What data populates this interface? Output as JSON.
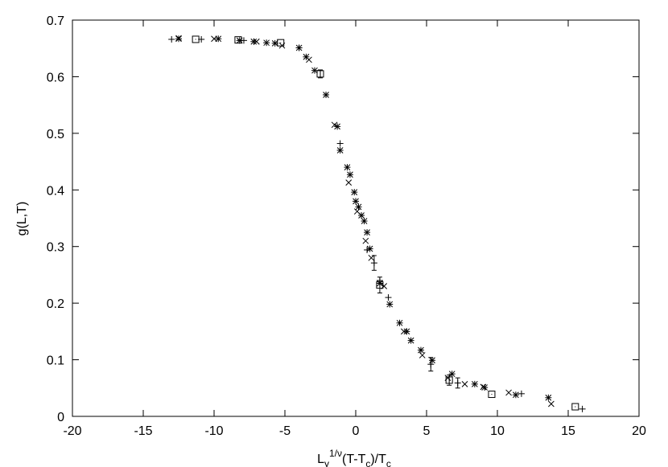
{
  "chart_data": {
    "type": "scatter",
    "title": "",
    "ylabel": "g(L,T)",
    "xlabel": {
      "base": "L",
      "base_sub": "y",
      "exp": "1/ν",
      "mid_start": "(T-T",
      "mid_sub": "c",
      "mid_end": ")/T",
      "end_sub": "c"
    },
    "xlim": [
      -20,
      20
    ],
    "ylim": [
      0,
      0.7
    ],
    "x_ticks": [
      -20,
      -15,
      -10,
      -5,
      0,
      5,
      10,
      15,
      20
    ],
    "y_ticks": [
      0,
      0.1,
      0.2,
      0.3,
      0.4,
      0.5,
      0.6,
      0.7
    ],
    "x_tick_labels": [
      "-20",
      "-15",
      "-10",
      "-5",
      "0",
      "5",
      "10",
      "15",
      "20"
    ],
    "y_tick_labels": [
      "0",
      "0.1",
      "0.2",
      "0.3",
      "0.4",
      "0.5",
      "0.6",
      "0.7"
    ],
    "grid": false,
    "series": [
      {
        "marker": "plus",
        "points": [
          [
            -13.0,
            0.666
          ],
          [
            -10.9,
            0.666
          ],
          [
            -7.9,
            0.664
          ],
          [
            -4.0,
            0.651
          ],
          [
            -1.1,
            0.482
          ],
          [
            0.8,
            0.294
          ],
          [
            1.3,
            0.271
          ],
          [
            1.7,
            0.24
          ],
          [
            2.3,
            0.21
          ],
          [
            5.3,
            0.092
          ],
          [
            7.2,
            0.059
          ],
          [
            11.7,
            0.04
          ],
          [
            16.0,
            0.013
          ]
        ]
      },
      {
        "marker": "cross",
        "points": [
          [
            -12.5,
            0.668
          ],
          [
            -10.0,
            0.667
          ],
          [
            -7.0,
            0.662
          ],
          [
            -5.2,
            0.655
          ],
          [
            -3.3,
            0.63
          ],
          [
            -1.5,
            0.515
          ],
          [
            -0.5,
            0.413
          ],
          [
            0.1,
            0.362
          ],
          [
            0.7,
            0.31
          ],
          [
            1.1,
            0.28
          ],
          [
            2.0,
            0.23
          ],
          [
            3.4,
            0.15
          ],
          [
            4.7,
            0.108
          ],
          [
            6.5,
            0.068
          ],
          [
            7.7,
            0.057
          ],
          [
            9.0,
            0.052
          ],
          [
            10.8,
            0.042
          ],
          [
            13.8,
            0.022
          ]
        ]
      },
      {
        "marker": "star",
        "points": [
          [
            -12.5,
            0.667
          ],
          [
            -9.7,
            0.667
          ],
          [
            -8.2,
            0.664
          ],
          [
            -7.2,
            0.662
          ],
          [
            -6.3,
            0.66
          ],
          [
            -5.7,
            0.659
          ],
          [
            -4.0,
            0.651
          ],
          [
            -3.5,
            0.635
          ],
          [
            -2.9,
            0.611
          ],
          [
            -2.1,
            0.568
          ],
          [
            -1.3,
            0.512
          ],
          [
            -1.1,
            0.47
          ],
          [
            -0.6,
            0.44
          ],
          [
            -0.4,
            0.427
          ],
          [
            -0.1,
            0.396
          ],
          [
            0.0,
            0.38
          ],
          [
            0.2,
            0.37
          ],
          [
            0.4,
            0.355
          ],
          [
            0.6,
            0.345
          ],
          [
            0.8,
            0.325
          ],
          [
            1.0,
            0.296
          ],
          [
            1.7,
            0.235
          ],
          [
            2.4,
            0.198
          ],
          [
            3.1,
            0.165
          ],
          [
            3.6,
            0.15
          ],
          [
            3.9,
            0.134
          ],
          [
            4.6,
            0.117
          ],
          [
            5.4,
            0.099
          ],
          [
            6.8,
            0.075
          ],
          [
            8.4,
            0.057
          ],
          [
            9.1,
            0.051
          ],
          [
            11.3,
            0.038
          ],
          [
            13.6,
            0.033
          ]
        ]
      },
      {
        "marker": "box",
        "points": [
          [
            -11.3,
            0.666
          ],
          [
            -8.3,
            0.665
          ],
          [
            -5.3,
            0.66
          ],
          [
            -2.5,
            0.605
          ],
          [
            1.7,
            0.232
          ],
          [
            6.6,
            0.064
          ],
          [
            9.6,
            0.039
          ],
          [
            15.5,
            0.017
          ]
        ]
      }
    ],
    "error_bars": [
      {
        "x": -2.5,
        "y": 0.605,
        "lo": 0.598,
        "hi": 0.612
      },
      {
        "x": 1.7,
        "y": 0.232,
        "lo": 0.218,
        "hi": 0.246
      },
      {
        "x": 1.3,
        "y": 0.271,
        "lo": 0.258,
        "hi": 0.284
      },
      {
        "x": 5.3,
        "y": 0.092,
        "lo": 0.08,
        "hi": 0.104
      },
      {
        "x": 6.6,
        "y": 0.064,
        "lo": 0.055,
        "hi": 0.073
      },
      {
        "x": 7.2,
        "y": 0.059,
        "lo": 0.05,
        "hi": 0.068
      }
    ]
  }
}
